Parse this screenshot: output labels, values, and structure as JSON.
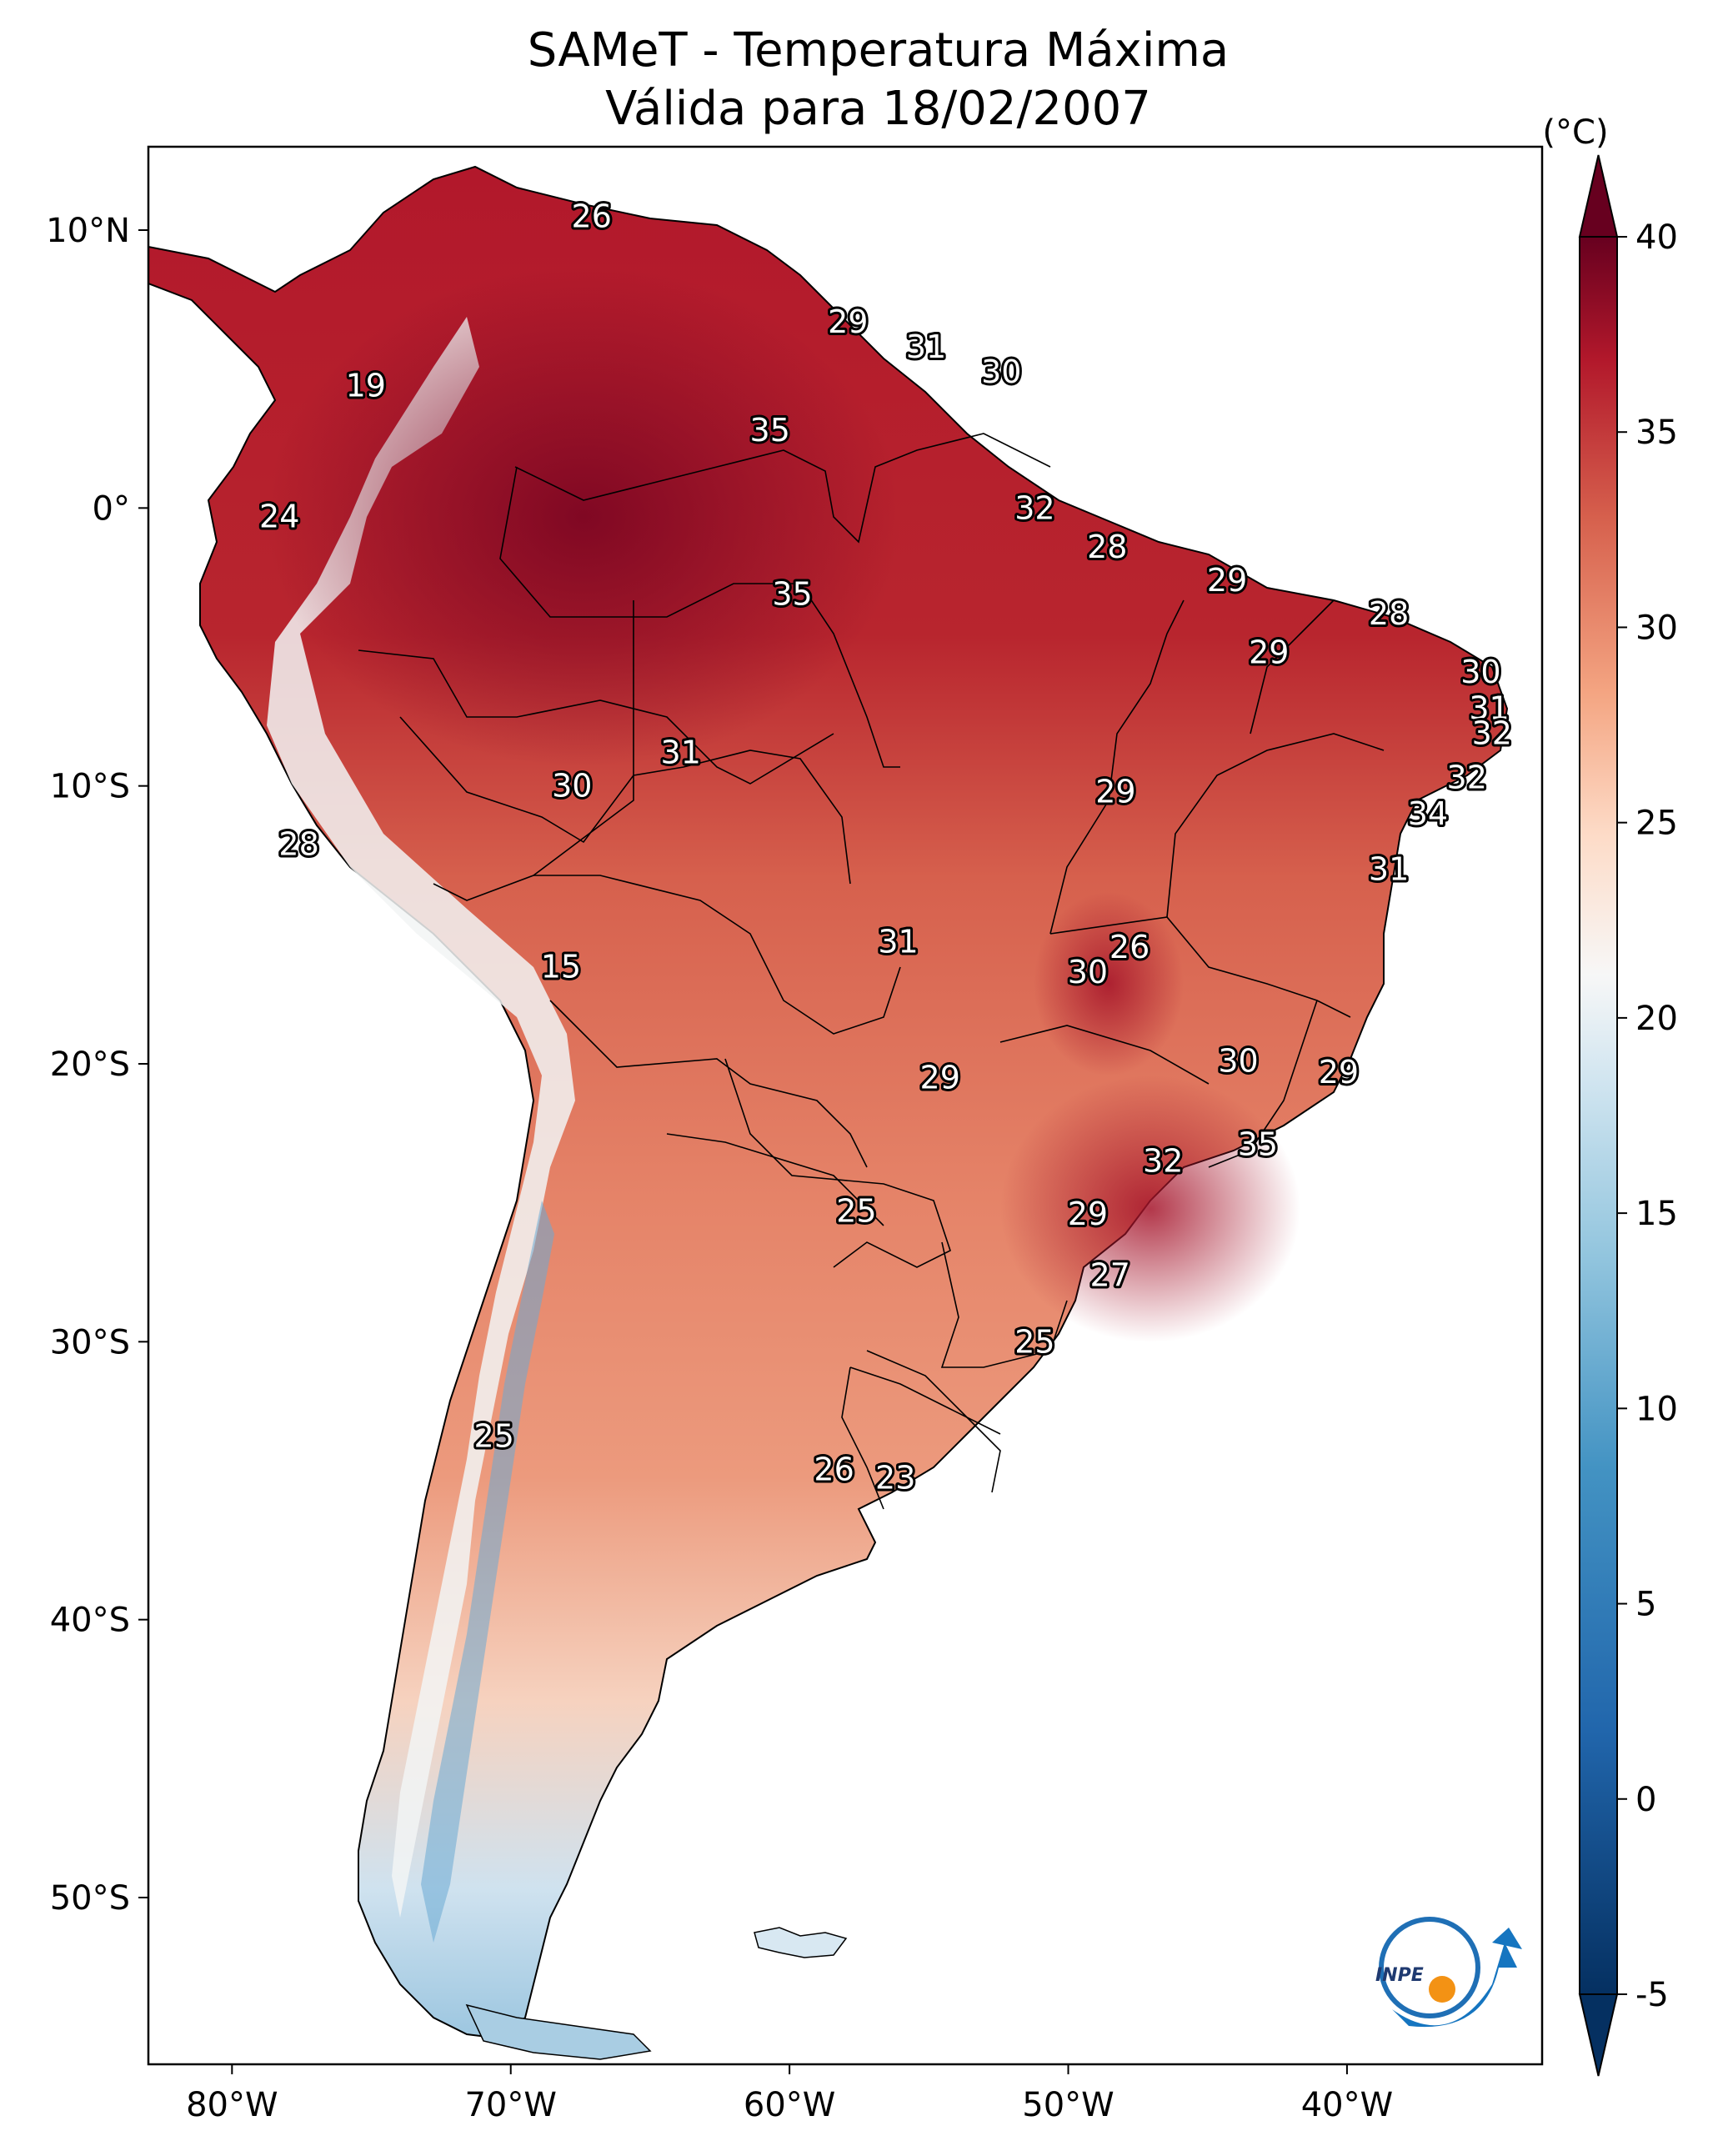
{
  "title": {
    "line1": "SAMeT - Temperatura Máxima",
    "line2": "Válida para 18/02/2007"
  },
  "map": {
    "lon_labels": [
      {
        "lon": -80,
        "text": "80°W"
      },
      {
        "lon": -70,
        "text": "70°W"
      },
      {
        "lon": -60,
        "text": "60°W"
      },
      {
        "lon": -50,
        "text": "50°W"
      },
      {
        "lon": -40,
        "text": "40°W"
      }
    ],
    "lat_labels": [
      {
        "lat": 10,
        "text": "10°N"
      },
      {
        "lat": 0,
        "text": "0°"
      },
      {
        "lat": -10,
        "text": "10°S"
      },
      {
        "lat": -20,
        "text": "20°S"
      },
      {
        "lat": -30,
        "text": "30°S"
      },
      {
        "lat": -40,
        "text": "40°S"
      },
      {
        "lat": -50,
        "text": "50°S"
      }
    ],
    "extent": {
      "lon_min": -83,
      "lon_max": -33,
      "lat_min": -56,
      "lat_max": 13
    },
    "station_labels": [
      {
        "lon": -67.1,
        "lat": 10.5,
        "text": "26"
      },
      {
        "lon": -75.2,
        "lat": 4.4,
        "text": "19"
      },
      {
        "lon": -78.3,
        "lat": -0.3,
        "text": "24"
      },
      {
        "lon": -57.9,
        "lat": 6.7,
        "text": "29"
      },
      {
        "lon": -55.1,
        "lat": 5.8,
        "text": "31"
      },
      {
        "lon": -52.4,
        "lat": 4.9,
        "text": "30"
      },
      {
        "lon": -60.7,
        "lat": 2.8,
        "text": "35"
      },
      {
        "lon": -51.2,
        "lat": 0.0,
        "text": "32"
      },
      {
        "lon": -48.6,
        "lat": -1.4,
        "text": "28"
      },
      {
        "lon": -59.9,
        "lat": -3.1,
        "text": "35"
      },
      {
        "lon": -44.3,
        "lat": -2.6,
        "text": "29"
      },
      {
        "lon": -38.5,
        "lat": -3.8,
        "text": "28"
      },
      {
        "lon": -42.8,
        "lat": -5.2,
        "text": "29"
      },
      {
        "lon": -35.2,
        "lat": -5.9,
        "text": "30"
      },
      {
        "lon": -34.9,
        "lat": -7.2,
        "text": "31"
      },
      {
        "lon": -34.8,
        "lat": -8.1,
        "text": "32"
      },
      {
        "lon": -35.7,
        "lat": -9.7,
        "text": "32"
      },
      {
        "lon": -37.1,
        "lat": -11.0,
        "text": "34"
      },
      {
        "lon": -38.5,
        "lat": -13.0,
        "text": "31"
      },
      {
        "lon": -63.9,
        "lat": -8.8,
        "text": "31"
      },
      {
        "lon": -67.8,
        "lat": -10.0,
        "text": "30"
      },
      {
        "lon": -48.3,
        "lat": -10.2,
        "text": "29"
      },
      {
        "lon": -77.6,
        "lat": -12.1,
        "text": "28"
      },
      {
        "lon": -56.1,
        "lat": -15.6,
        "text": "31"
      },
      {
        "lon": -47.8,
        "lat": -15.8,
        "text": "26"
      },
      {
        "lon": -49.3,
        "lat": -16.7,
        "text": "30"
      },
      {
        "lon": -68.2,
        "lat": -16.5,
        "text": "15"
      },
      {
        "lon": -54.6,
        "lat": -20.5,
        "text": "29"
      },
      {
        "lon": -43.9,
        "lat": -19.9,
        "text": "30"
      },
      {
        "lon": -40.3,
        "lat": -20.3,
        "text": "29"
      },
      {
        "lon": -43.2,
        "lat": -22.9,
        "text": "35"
      },
      {
        "lon": -46.6,
        "lat": -23.5,
        "text": "32"
      },
      {
        "lon": -57.6,
        "lat": -25.3,
        "text": "25"
      },
      {
        "lon": -49.3,
        "lat": -25.4,
        "text": "29"
      },
      {
        "lon": -48.5,
        "lat": -27.6,
        "text": "27"
      },
      {
        "lon": -51.2,
        "lat": -30.0,
        "text": "25"
      },
      {
        "lon": -70.6,
        "lat": -33.4,
        "text": "25"
      },
      {
        "lon": -58.4,
        "lat": -34.6,
        "text": "26"
      },
      {
        "lon": -56.2,
        "lat": -34.9,
        "text": "23"
      }
    ]
  },
  "colorbar": {
    "unit": "(°C)",
    "min": -7,
    "max": 42,
    "ticks": [
      {
        "value": 40,
        "text": "40"
      },
      {
        "value": 35,
        "text": "35"
      },
      {
        "value": 30,
        "text": "30"
      },
      {
        "value": 25,
        "text": "25"
      },
      {
        "value": 20,
        "text": "20"
      },
      {
        "value": 15,
        "text": "15"
      },
      {
        "value": 10,
        "text": "10"
      },
      {
        "value": 5,
        "text": "5"
      },
      {
        "value": 0,
        "text": "0"
      },
      {
        "value": -5,
        "text": "-5"
      }
    ],
    "colors": {
      "low": "#053061",
      "mid_low": "#4393c3",
      "neutral": "#f7f7f7",
      "mid_high": "#f4a582",
      "high": "#d6604d",
      "top": "#67001f"
    }
  },
  "logo": {
    "text": "INPE"
  }
}
